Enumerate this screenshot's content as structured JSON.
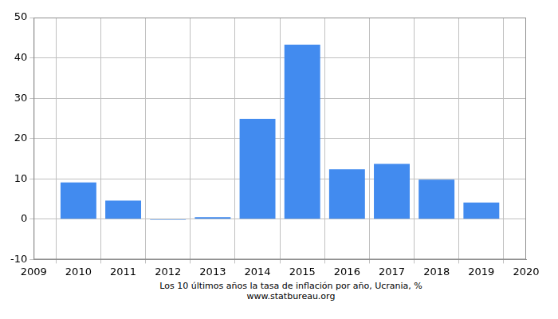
{
  "chart_data": {
    "type": "bar",
    "title": "Los 10 últimos años la tasa de inflación por año, Ucrania, %",
    "subtitle": "www.statbureau.org",
    "x": [
      2010,
      2011,
      2012,
      2013,
      2014,
      2015,
      2016,
      2017,
      2018,
      2019
    ],
    "values": [
      9.1,
      4.6,
      -0.2,
      0.5,
      24.9,
      43.3,
      12.4,
      13.7,
      9.8,
      4.1
    ],
    "color": "#428bef",
    "xlim": [
      2009,
      2020
    ],
    "xticks": [
      2009,
      2010,
      2011,
      2012,
      2013,
      2014,
      2015,
      2016,
      2017,
      2018,
      2019,
      2020
    ],
    "ylim": [
      -10,
      50
    ],
    "yticks": [
      -10,
      0,
      10,
      20,
      30,
      40,
      50
    ],
    "grid": true
  }
}
